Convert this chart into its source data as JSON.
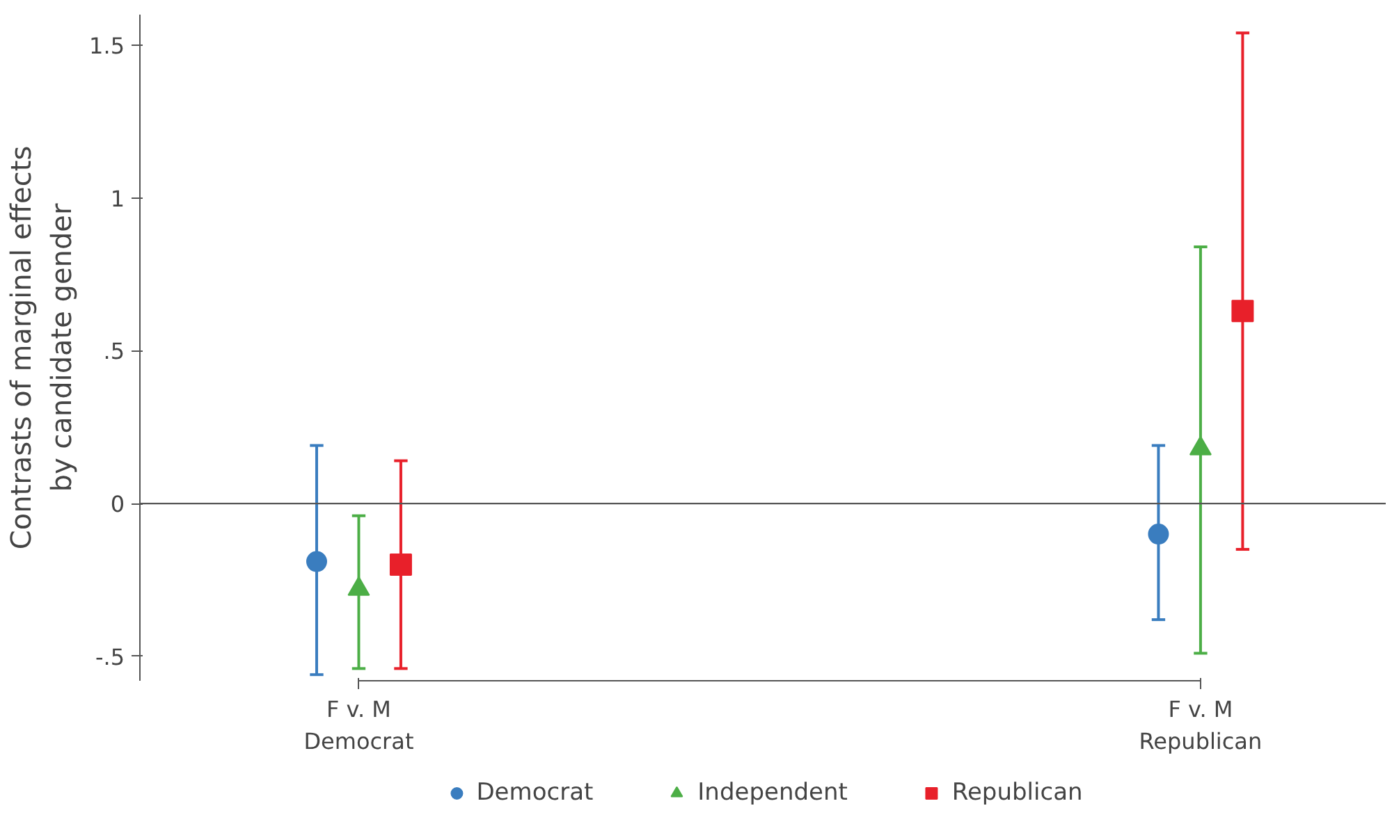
{
  "chart_data": {
    "type": "scatter",
    "ylabel": "Contrasts of marginal effects\nby candidate gender",
    "categories": [
      "F v. M\nDemocrat",
      "F v. M\nRepublican"
    ],
    "series": [
      {
        "name": "Democrat",
        "color": "#3a7dbf",
        "marker": "circle",
        "values": [
          -0.19,
          -0.1
        ],
        "errors": [
          [
            -0.56,
            0.19
          ],
          [
            -0.38,
            0.19
          ]
        ]
      },
      {
        "name": "Independent",
        "color": "#4cae46",
        "marker": "triangle",
        "values": [
          -0.28,
          0.18
        ],
        "errors": [
          [
            -0.54,
            -0.04
          ],
          [
            -0.49,
            0.84
          ]
        ]
      },
      {
        "name": "Republican",
        "color": "#e8202a",
        "marker": "square",
        "values": [
          -0.2,
          0.63
        ],
        "errors": [
          [
            -0.54,
            0.14
          ],
          [
            -0.15,
            1.54
          ]
        ]
      }
    ],
    "ylim": [
      -0.58,
      1.6
    ],
    "yticks": [
      {
        "value": -0.5,
        "label": "-.5"
      },
      0,
      {
        "value": 0.5,
        "label": ".5"
      },
      1,
      1.5
    ],
    "ref_lines": [
      {
        "axis": "y",
        "value": 0,
        "color": "#555555"
      }
    ],
    "grid": false,
    "legend": "bottom"
  }
}
